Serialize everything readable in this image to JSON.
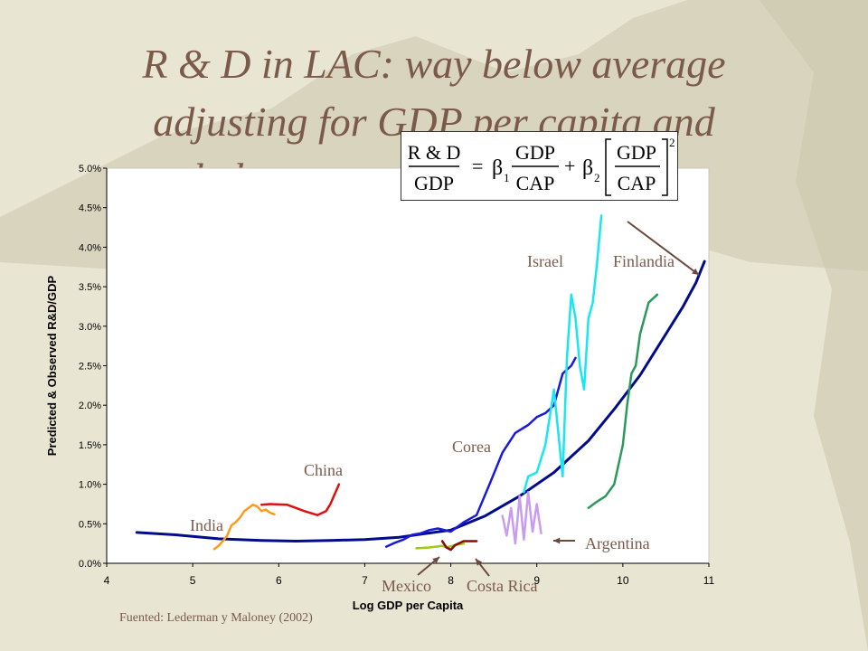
{
  "slide": {
    "title_lines": [
      "R & D in LAC: way below average",
      "adjusting for GDP per capita and",
      "below succe"
    ],
    "source": "Fuented: Lederman y Maloney (2002)",
    "formula": {
      "lhs_num": "R & D",
      "lhs_den": "GDP",
      "beta1": "β",
      "beta1_sub": "1",
      "frac_num": "GDP",
      "frac_den": "CAP",
      "beta2": "β",
      "beta2_sub": "2",
      "exponent": "2"
    }
  },
  "chart_data": {
    "type": "line",
    "xlabel": "Log GDP per Capita",
    "ylabel": "Predicted & Observed R&D/GDP",
    "xlim": [
      4,
      11
    ],
    "ylim": [
      0,
      0.05
    ],
    "xticks": [
      "4",
      "5",
      "6",
      "7",
      "8",
      "9",
      "10",
      "11"
    ],
    "yticks": [
      "0.0%",
      "0.5%",
      "1.0%",
      "1.5%",
      "2.0%",
      "2.5%",
      "3.0%",
      "3.5%",
      "4.0%",
      "4.5%",
      "5.0%"
    ],
    "grid": false,
    "series": [
      {
        "name": "Predicted",
        "color": "#000c8c",
        "x": [
          4.35,
          4.8,
          5.3,
          5.8,
          6.2,
          6.6,
          7.0,
          7.4,
          7.8,
          8.0,
          8.4,
          8.8,
          9.2,
          9.6,
          9.9,
          10.2,
          10.5,
          10.7,
          10.85,
          10.95
        ],
        "y": [
          0.0039,
          0.0036,
          0.0031,
          0.0029,
          0.0028,
          0.0029,
          0.003,
          0.0033,
          0.0039,
          0.0042,
          0.006,
          0.0085,
          0.0115,
          0.0155,
          0.0195,
          0.0238,
          0.029,
          0.0325,
          0.0355,
          0.0382
        ]
      },
      {
        "name": "India",
        "color": "#ff9a1a",
        "x": [
          5.25,
          5.3,
          5.35,
          5.4,
          5.45,
          5.5,
          5.55,
          5.6,
          5.65,
          5.7,
          5.75,
          5.8,
          5.85,
          5.9,
          5.95
        ],
        "y": [
          0.0018,
          0.0022,
          0.0028,
          0.0035,
          0.0048,
          0.0052,
          0.0058,
          0.0066,
          0.007,
          0.0074,
          0.0072,
          0.0066,
          0.0068,
          0.0064,
          0.0062
        ]
      },
      {
        "name": "China",
        "color": "#e01010",
        "x": [
          5.8,
          5.9,
          6.1,
          6.3,
          6.45,
          6.55,
          6.6,
          6.7
        ],
        "y": [
          0.0074,
          0.0075,
          0.0074,
          0.0066,
          0.0061,
          0.0066,
          0.0075,
          0.01
        ]
      },
      {
        "name": "Corea",
        "color": "#1a1ad8",
        "x": [
          7.25,
          7.35,
          7.45,
          7.55,
          7.65,
          7.75,
          7.85,
          8.0,
          8.15,
          8.3,
          8.45,
          8.6,
          8.75,
          8.9,
          9.0,
          9.1,
          9.2,
          9.3,
          9.4,
          9.45
        ],
        "y": [
          0.0021,
          0.0026,
          0.003,
          0.0036,
          0.0038,
          0.0042,
          0.0044,
          0.004,
          0.0052,
          0.0061,
          0.01,
          0.014,
          0.0165,
          0.0175,
          0.0185,
          0.019,
          0.02,
          0.024,
          0.025,
          0.026
        ]
      },
      {
        "name": "Israel",
        "color": "#18e6f0",
        "x": [
          8.85,
          8.9,
          9.0,
          9.1,
          9.2,
          9.3,
          9.35,
          9.4,
          9.45,
          9.5,
          9.55,
          9.6,
          9.65,
          9.7,
          9.75
        ],
        "y": [
          0.009,
          0.011,
          0.0115,
          0.015,
          0.022,
          0.011,
          0.026,
          0.034,
          0.031,
          0.025,
          0.022,
          0.031,
          0.033,
          0.038,
          0.044
        ]
      },
      {
        "name": "Finlandia",
        "color": "#2a9a5a",
        "x": [
          9.6,
          9.7,
          9.8,
          9.9,
          10.0,
          10.05,
          10.1,
          10.15,
          10.2,
          10.3,
          10.4
        ],
        "y": [
          0.007,
          0.0078,
          0.0085,
          0.01,
          0.015,
          0.02,
          0.024,
          0.025,
          0.029,
          0.033,
          0.034
        ]
      },
      {
        "name": "Argentina",
        "color": "#c89cf2",
        "x": [
          8.6,
          8.65,
          8.7,
          8.75,
          8.8,
          8.85,
          8.9,
          8.95,
          9.0,
          9.05
        ],
        "y": [
          0.006,
          0.0035,
          0.007,
          0.0025,
          0.0085,
          0.003,
          0.009,
          0.004,
          0.0075,
          0.0038
        ]
      },
      {
        "name": "Mexico",
        "color": "#a0c814",
        "x": [
          7.6,
          7.75,
          7.9,
          7.95,
          8.05,
          8.15
        ],
        "y": [
          0.0019,
          0.002,
          0.0022,
          0.002,
          0.0023,
          0.0025
        ]
      },
      {
        "name": "Costa Rica",
        "color": "#8a0a0a",
        "x": [
          7.9,
          7.95,
          8.0,
          8.05,
          8.15,
          8.3
        ],
        "y": [
          0.0028,
          0.002,
          0.0017,
          0.0023,
          0.0028,
          0.0028
        ]
      }
    ],
    "annotations": [
      "India",
      "China",
      "Corea",
      "Israel",
      "Finlandia",
      "Argentina",
      "Mexico",
      "Costa Rica"
    ]
  }
}
